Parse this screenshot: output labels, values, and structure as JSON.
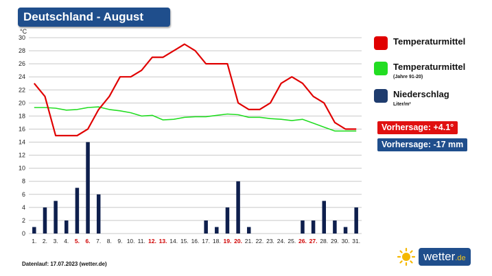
{
  "header": {
    "title": "Deutschland - August"
  },
  "chart_data": {
    "type": "line+bar",
    "y_unit": "°C",
    "ylim": [
      0,
      30
    ],
    "y_ticks": [
      0,
      2,
      4,
      6,
      8,
      10,
      12,
      14,
      16,
      18,
      20,
      22,
      24,
      26,
      28,
      30
    ],
    "categories": [
      "1.",
      "2.",
      "3.",
      "4.",
      "5.",
      "6.",
      "7.",
      "8.",
      "9.",
      "10.",
      "11.",
      "12.",
      "13.",
      "14.",
      "15.",
      "16.",
      "17.",
      "18.",
      "19.",
      "20.",
      "21.",
      "22.",
      "23.",
      "24.",
      "25.",
      "26.",
      "27.",
      "28.",
      "29.",
      "30.",
      "31."
    ],
    "highlighted_categories": [
      "5.",
      "6.",
      "12.",
      "13.",
      "19.",
      "20.",
      "26.",
      "27."
    ],
    "grid": true,
    "series": [
      {
        "name": "Temperaturmittel",
        "kind": "line",
        "color": "#e00000",
        "values": [
          23,
          21,
          15,
          15,
          15,
          16,
          19,
          21,
          24,
          24,
          25,
          27,
          27,
          28,
          29,
          28,
          26,
          26,
          26,
          20,
          19,
          19,
          20,
          23,
          24,
          23,
          21,
          20,
          17,
          16,
          16
        ]
      },
      {
        "name": "Temperaturmittel",
        "kind": "line",
        "color": "#22dd22",
        "values": [
          19.3,
          19.3,
          19.2,
          18.9,
          19.0,
          19.3,
          19.4,
          19.0,
          18.8,
          18.5,
          18.0,
          18.1,
          17.4,
          17.5,
          17.8,
          17.9,
          17.9,
          18.1,
          18.3,
          18.2,
          17.8,
          17.8,
          17.6,
          17.5,
          17.3,
          17.5,
          16.9,
          16.3,
          15.7,
          15.7,
          15.7
        ]
      },
      {
        "name": "Niederschlag",
        "kind": "bar",
        "color": "#0e1f4d",
        "values": [
          1,
          4,
          5,
          2,
          7,
          14,
          6,
          0,
          0,
          0,
          0,
          0,
          0,
          0,
          0,
          0,
          2,
          1,
          4,
          8,
          1,
          0,
          0,
          0,
          0,
          2,
          2,
          5,
          2,
          1,
          4
        ]
      }
    ]
  },
  "legend": {
    "items": [
      {
        "label": "Temperaturmittel",
        "sub": "",
        "color": "#e00000"
      },
      {
        "label": "Temperaturmittel",
        "sub": "(Jahre 91-20)",
        "color": "#22dd22"
      },
      {
        "label": "Niederschlag",
        "sub": "Liter/m²",
        "color": "#1f3c6e"
      }
    ]
  },
  "badges": {
    "temp_forecast": {
      "text": "Vorhersage: +4.1°",
      "color": "#e01010"
    },
    "precip_forecast": {
      "text": "Vorhersage: -17 mm",
      "color": "#1f4e8c"
    }
  },
  "footer": {
    "note": "Datenlauf: 17.07.2023 (wetter.de)"
  },
  "logo": {
    "name": "wetter",
    "tld": ".de",
    "icon": "sun-icon"
  }
}
